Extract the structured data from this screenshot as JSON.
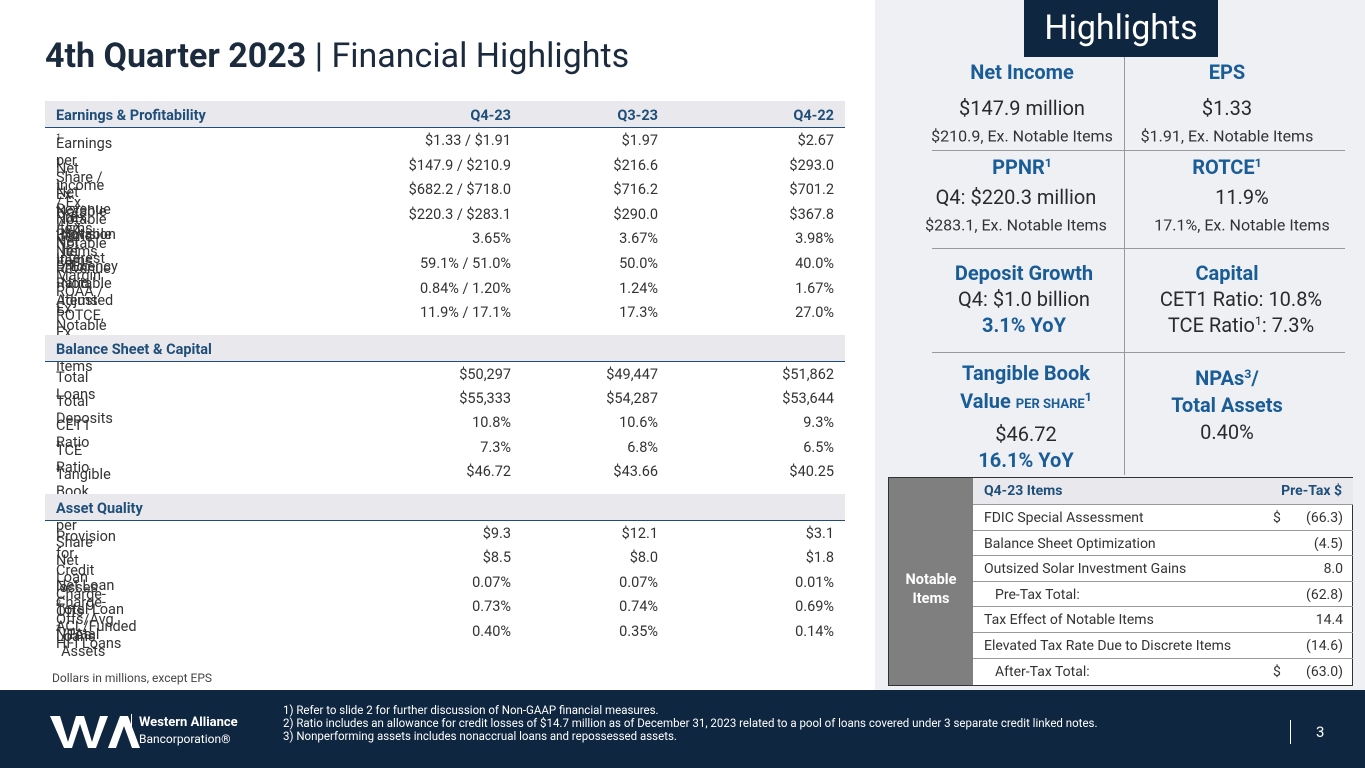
{
  "header": {
    "title_bold": "4th Quarter 2023",
    "title_rest": "| Financial Highlights"
  },
  "table": {
    "sections": [
      {
        "header": [
          "Earnings & Profitability",
          "Q4-23",
          "Q3-23",
          "Q4-22"
        ],
        "rows": [
          {
            "label": [
              "Earnings per Share / Ex. Notable Items",
              "1"
            ],
            "values": [
              "$1.33 / $1.91",
              "$1.97",
              "$2.67"
            ]
          },
          {
            "label": [
              "Net Income / Ex. Notable Items",
              "1"
            ],
            "values": [
              "$147.9 / $210.9",
              "$216.6",
              "$293.0"
            ]
          },
          {
            "label": [
              "Net Revenue / Ex. Notable Items",
              "1"
            ],
            "values": [
              "$682.2 / $718.0",
              "$716.2",
              "$701.2"
            ]
          },
          {
            "label": [
              "Pre-Provision Net Revenue",
              "1",
              " / Ex. Notable Items"
            ],
            "values": [
              "$220.3 / $283.1",
              "$290.0",
              "$367.8"
            ]
          },
          {
            "label": [
              "Net Interest Margin"
            ],
            "values": [
              "3.65%",
              "3.67%",
              "3.98%"
            ]
          },
          {
            "label": [
              "Efficiency Ratio, Adjusted",
              "1",
              " / Ex. Notable Items"
            ],
            "values": [
              "59.1% / 51.0%",
              "50.0%",
              "40.0%"
            ]
          },
          {
            "label": [
              "ROAA / Ex. Notable Items",
              "1"
            ],
            "values": [
              "0.84% / 1.20%",
              "1.24%",
              "1.67%"
            ]
          },
          {
            "label": [
              "ROTCE, Ex. Notable Items",
              "1"
            ],
            "values": [
              "11.9% / 17.1%",
              "17.3%",
              "27.0%"
            ]
          }
        ]
      },
      {
        "header": [
          "Balance Sheet & Capital"
        ],
        "rows": [
          {
            "label": [
              "Total Loans"
            ],
            "values": [
              "$50,297",
              "$49,447",
              "$51,862"
            ]
          },
          {
            "label": [
              "Total Deposits"
            ],
            "values": [
              "$55,333",
              "$54,287",
              "$53,644"
            ]
          },
          {
            "label": [
              "CET1 Ratio"
            ],
            "values": [
              "10.8%",
              "10.6%",
              "9.3%"
            ]
          },
          {
            "label": [
              "TCE Ratio",
              "1"
            ],
            "values": [
              "7.3%",
              "6.8%",
              "6.5%"
            ]
          },
          {
            "label": [
              "Tangible Book Value per Share",
              "1"
            ],
            "values": [
              "$46.72",
              "$43.66",
              "$40.25"
            ]
          }
        ]
      },
      {
        "header": [
          "Asset Quality"
        ],
        "rows": [
          {
            "label": [
              "Provision for Credit losses"
            ],
            "values": [
              "$9.3",
              "$12.1",
              "$3.1"
            ]
          },
          {
            "label": [
              "Net Loan Charge-Offs"
            ],
            "values": [
              "$8.5",
              "$8.0",
              "$1.8"
            ]
          },
          {
            "label": [
              "Net Loan Charge-Offs/Avg. Loans"
            ],
            "values": [
              "0.07%",
              "0.07%",
              "0.01%"
            ]
          },
          {
            "label": [
              "Total Loan ACL/Funded HFI Loans",
              "2"
            ],
            "values": [
              "0.73%",
              "0.74%",
              "0.69%"
            ]
          },
          {
            "label": [
              "NPAs",
              "3",
              "/Total Assets"
            ],
            "values": [
              "0.40%",
              "0.35%",
              "0.14%"
            ]
          }
        ]
      }
    ],
    "note": "Dollars in millions, except EPS"
  },
  "highlights": {
    "title": "Highlights",
    "net_income": {
      "title": "Net Income",
      "main": "$147.9 million",
      "sub": "$210.9, Ex. Notable Items"
    },
    "eps": {
      "title": "EPS",
      "main": "$1.33",
      "sub": "$1.91, Ex. Notable Items"
    },
    "ppnr": {
      "title": [
        "PPNR",
        "1"
      ],
      "main": "Q4: $220.3 million",
      "sub": "$283.1, Ex. Notable Items"
    },
    "rotce": {
      "title": [
        "ROTCE",
        "1"
      ],
      "main": "11.9%",
      "sub": "17.1%, Ex. Notable Items"
    },
    "deposit": {
      "title": "Deposit Growth",
      "main": "Q4: $1.0 billion",
      "yoy": "3.1% YoY"
    },
    "capital": {
      "title": "Capital",
      "line1": "CET1 Ratio: 10.8%",
      "line2": [
        "TCE Ratio",
        "1",
        ": 7.3%"
      ]
    },
    "tbv": {
      "title_line1": "Tangible Book",
      "title_line2": "Value",
      "title_small": "PER SHARE",
      "title_sup": "1",
      "main": "$46.72",
      "yoy": "16.1% YoY"
    },
    "npas": {
      "title_line1": [
        "NPAs",
        "3",
        "/"
      ],
      "title_line2": "Total Assets",
      "main": "0.40%"
    }
  },
  "notable": {
    "side": "Notable Items",
    "header": [
      "Q4-23 Items",
      "Pre-Tax $"
    ],
    "rows": [
      {
        "label": "FDIC Special Assessment",
        "currency": "$",
        "value": "(66.3)"
      },
      {
        "label": "Balance Sheet Optimization",
        "value": "(4.5)"
      },
      {
        "label": "Outsized Solar Investment Gains",
        "value": "8.0"
      },
      {
        "label": "Pre-Tax Total:",
        "value": "(62.8)"
      },
      {
        "label": "Tax Effect of Notable Items",
        "value": "14.4"
      },
      {
        "label": "Elevated Tax Rate Due to Discrete Items",
        "value": "(14.6)"
      },
      {
        "label": "After-Tax Total:",
        "currency": "$",
        "value": "(63.0)"
      }
    ]
  },
  "footer": {
    "footnotes": [
      "1)  Refer to slide 2 for further discussion of Non-GAAP financial measures.",
      "2)  Ratio includes an allowance for credit losses of $14.7 million as of December 31, 2023 related to a pool of loans covered under 3 separate credit linked notes.",
      "3)  Nonperforming assets includes nonaccrual loans and repossessed assets."
    ],
    "logo_name": "Western Alliance",
    "logo_sub": "Bancorporation®",
    "page": "3"
  }
}
